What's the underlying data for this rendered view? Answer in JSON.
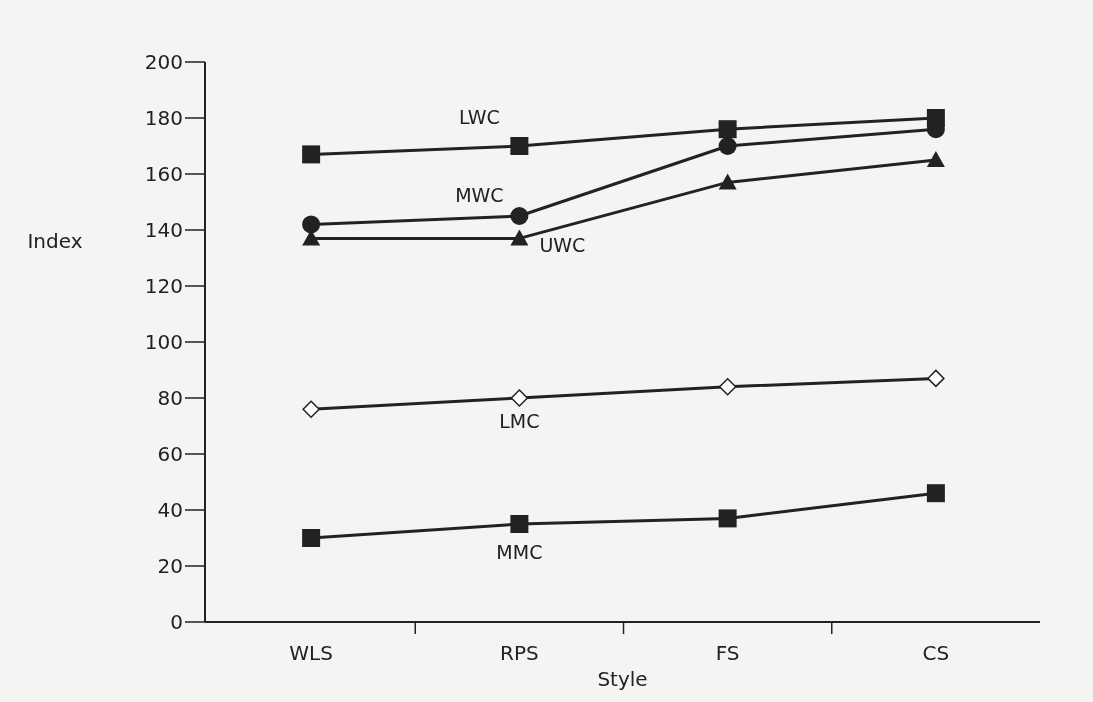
{
  "chart_data": {
    "type": "line",
    "xlabel": "Style",
    "ylabel": "Index",
    "categories": [
      "WLS",
      "RPS",
      "FS",
      "CS"
    ],
    "series": [
      {
        "name": "LWC",
        "color": "#222222",
        "marker": "square",
        "values": [
          167,
          170,
          176,
          180
        ]
      },
      {
        "name": "MWC",
        "color": "#222222",
        "marker": "circle",
        "values": [
          142,
          145,
          170,
          176
        ]
      },
      {
        "name": "UWC",
        "color": "#222222",
        "marker": "triangle",
        "values": [
          137,
          137,
          157,
          165
        ]
      },
      {
        "name": "LMC",
        "color": "#222222",
        "marker": "diamond",
        "values": [
          76,
          80,
          84,
          87
        ]
      },
      {
        "name": "MMC",
        "color": "#222222",
        "marker": "square",
        "values": [
          30,
          35,
          37,
          46
        ]
      }
    ],
    "ylim": [
      0,
      200
    ],
    "yticks": [
      0,
      20,
      40,
      60,
      80,
      100,
      120,
      140,
      160,
      180,
      200
    ],
    "grid": false
  }
}
